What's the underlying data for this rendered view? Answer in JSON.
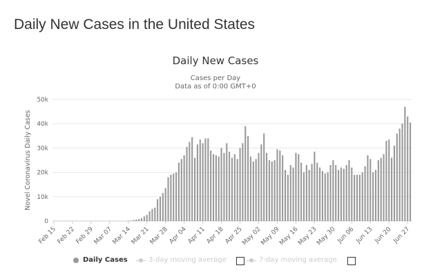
{
  "page_title": "Daily New Cases in the United States",
  "chart_data": {
    "type": "bar",
    "title": "Daily New Cases",
    "subtitle_lines": [
      "Cases per Day",
      "Data as of 0:00 GMT+0"
    ],
    "xlabel": "",
    "ylabel": "Novel Coronavirus Daily Cases",
    "ylim": [
      0,
      50000
    ],
    "yticks": [
      0,
      10000,
      20000,
      30000,
      40000,
      50000
    ],
    "ytick_labels": [
      "0",
      "10k",
      "20k",
      "30k",
      "40k",
      "50k"
    ],
    "start_date": "2020-02-15",
    "xtick_labels": [
      "Feb 15",
      "Feb 22",
      "Feb 29",
      "Mar 07",
      "Mar 14",
      "Mar 21",
      "Mar 28",
      "Apr 04",
      "Apr 11",
      "Apr 18",
      "Apr 25",
      "May 02",
      "May 09",
      "May 16",
      "May 23",
      "May 30",
      "Jun 06",
      "Jun 13",
      "Jun 20",
      "Jun 27"
    ],
    "bar_color": "#999999",
    "series": [
      {
        "name": "Daily Cases",
        "values": [
          0,
          0,
          0,
          0,
          0,
          0,
          0,
          0,
          0,
          0,
          0,
          0,
          0,
          0,
          0,
          0,
          0,
          0,
          0,
          0,
          0,
          0,
          0,
          0,
          0,
          0,
          0,
          0,
          100,
          200,
          400,
          600,
          800,
          1200,
          1900,
          2500,
          4000,
          5000,
          5500,
          9000,
          10000,
          11500,
          13500,
          18000,
          19000,
          19500,
          20000,
          24000,
          25500,
          27000,
          30500,
          32500,
          34500,
          26000,
          31500,
          33500,
          32000,
          34000,
          34000,
          29000,
          27500,
          27000,
          26500,
          30000,
          28000,
          32000,
          28500,
          26000,
          27500,
          25500,
          30000,
          32000,
          39000,
          35000,
          26500,
          24500,
          25500,
          28000,
          31500,
          36000,
          28000,
          25000,
          24500,
          25000,
          29500,
          29000,
          27000,
          21000,
          19000,
          23000,
          22000,
          28000,
          27500,
          24000,
          20000,
          23000,
          21000,
          23500,
          28500,
          24000,
          22000,
          20500,
          19500,
          20000,
          23000,
          25000,
          23000,
          21000,
          22000,
          21500,
          23000,
          25000,
          22000,
          19000,
          19000,
          19000,
          20000,
          22500,
          27000,
          25500,
          20000,
          21000,
          25000,
          26000,
          27500,
          33000,
          33500,
          26000,
          31000,
          36000,
          38000,
          40000,
          47000,
          43000,
          40500
        ]
      }
    ],
    "legend": {
      "placement": "bottom",
      "items": [
        {
          "label": "Daily Cases",
          "color": "#999999"
        },
        {
          "label": "3-day moving average",
          "color": "#cccccc"
        },
        {
          "label": "7-day moving average",
          "color": "#cccccc"
        }
      ]
    }
  }
}
